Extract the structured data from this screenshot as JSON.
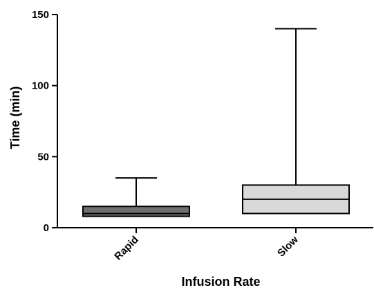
{
  "chart_data": {
    "type": "boxplot",
    "xlabel": "Infusion  Rate",
    "ylabel": "Time (min)",
    "ylim": [
      0,
      150
    ],
    "yticks": [
      0,
      50,
      100,
      150
    ],
    "categories": [
      "Rapid",
      "Slow"
    ],
    "boxes": [
      {
        "category": "Rapid",
        "min": 8,
        "q1": 8,
        "median": 10,
        "q3": 15,
        "max": 35,
        "fill": "#6f6f6f"
      },
      {
        "category": "Slow",
        "min": 10,
        "q1": 10,
        "median": 20,
        "q3": 30,
        "max": 140,
        "fill": "#d9d9d9"
      }
    ],
    "grid": false,
    "legend": "none"
  }
}
